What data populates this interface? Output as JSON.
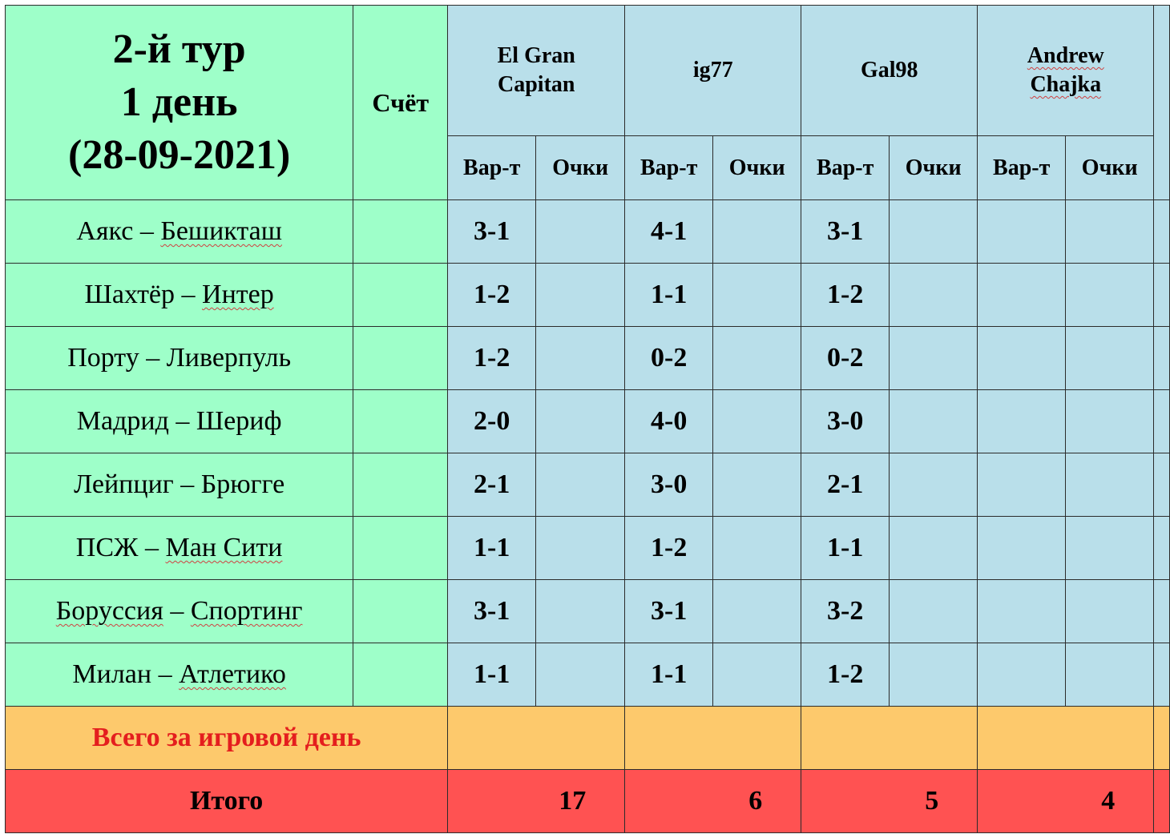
{
  "header": {
    "title_line1": "2-й тур",
    "title_line2": "1 день",
    "title_line3": "(28-09-2021)",
    "score_label": "Счёт",
    "variant_label": "Вар-т",
    "points_label": "Очки"
  },
  "players": [
    {
      "name_line1": "El Gran",
      "name_line2": "Capitan",
      "total": "17"
    },
    {
      "name_line1": "ig77",
      "name_line2": "",
      "total": "6"
    },
    {
      "name_line1": "Gal98",
      "name_line2": "",
      "total": "5"
    },
    {
      "name_line1": "Andrew",
      "name_line2": "Chajka",
      "total": "4"
    }
  ],
  "matches": [
    {
      "home": "Аякс",
      "away": "Бешикташ",
      "score": "",
      "bets": [
        "3-1",
        "4-1",
        "3-1",
        ""
      ],
      "points": [
        "",
        "",
        "",
        ""
      ]
    },
    {
      "home": "Шахтёр",
      "away": "Интер",
      "score": "",
      "bets": [
        "1-2",
        "1-1",
        "1-2",
        ""
      ],
      "points": [
        "",
        "",
        "",
        ""
      ]
    },
    {
      "home": "Порту",
      "away": "Ливерпуль",
      "score": "",
      "bets": [
        "1-2",
        "0-2",
        "0-2",
        ""
      ],
      "points": [
        "",
        "",
        "",
        ""
      ]
    },
    {
      "home": "Мадрид",
      "away": "Шериф",
      "score": "",
      "bets": [
        "2-0",
        "4-0",
        "3-0",
        ""
      ],
      "points": [
        "",
        "",
        "",
        ""
      ]
    },
    {
      "home": "Лейпциг",
      "away": "Брюгге",
      "score": "",
      "bets": [
        "2-1",
        "3-0",
        "2-1",
        ""
      ],
      "points": [
        "",
        "",
        "",
        ""
      ]
    },
    {
      "home": "ПСЖ",
      "away": "Ман Сити",
      "score": "",
      "bets": [
        "1-1",
        "1-2",
        "1-1",
        ""
      ],
      "points": [
        "",
        "",
        "",
        ""
      ]
    },
    {
      "home": "Боруссия",
      "away": "Спортинг",
      "score": "",
      "bets": [
        "3-1",
        "3-1",
        "3-2",
        ""
      ],
      "points": [
        "",
        "",
        "",
        ""
      ]
    },
    {
      "home": "Милан",
      "away": "Атлетико",
      "score": "",
      "bets": [
        "1-1",
        "1-1",
        "1-2",
        ""
      ],
      "points": [
        "",
        "",
        "",
        ""
      ]
    }
  ],
  "footer": {
    "day_total_label": "Всего за игровой день",
    "day_totals": [
      "",
      "",
      "",
      ""
    ],
    "grand_total_label": "Итого"
  },
  "colors": {
    "match_area": "#9effc9",
    "player_area": "#b9dfea",
    "day_total_row": "#fdc96c",
    "grand_total_row": "#ff5252",
    "day_total_text": "#e41e1e"
  }
}
